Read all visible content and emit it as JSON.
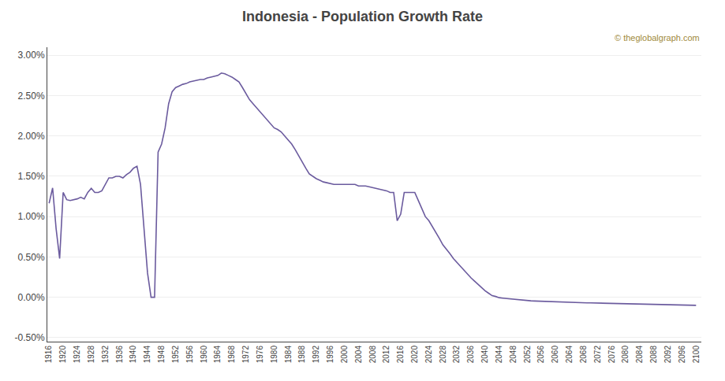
{
  "chart_data": {
    "type": "line",
    "title": "Indonesia - Population Growth Rate",
    "annotations": [
      "© theglobalgraph.com"
    ],
    "color": "#6b5b9e",
    "grid": "y",
    "x": [
      1916,
      1917,
      1918,
      1919,
      1920,
      1921,
      1922,
      1923,
      1924,
      1925,
      1926,
      1927,
      1928,
      1929,
      1930,
      1931,
      1932,
      1933,
      1934,
      1935,
      1936,
      1937,
      1938,
      1939,
      1940,
      1941,
      1942,
      1943,
      1944,
      1945,
      1946,
      1947,
      1948,
      1949,
      1950,
      1951,
      1952,
      1953,
      1954,
      1955,
      1956,
      1957,
      1958,
      1959,
      1960,
      1961,
      1962,
      1963,
      1964,
      1965,
      1966,
      1967,
      1968,
      1969,
      1970,
      1971,
      1972,
      1973,
      1974,
      1975,
      1976,
      1977,
      1978,
      1979,
      1980,
      1981,
      1982,
      1983,
      1984,
      1985,
      1986,
      1987,
      1988,
      1989,
      1990,
      1991,
      1992,
      1993,
      1994,
      1995,
      1996,
      1997,
      1998,
      1999,
      2000,
      2001,
      2002,
      2003,
      2004,
      2005,
      2006,
      2007,
      2008,
      2009,
      2010,
      2011,
      2012,
      2013,
      2014,
      2015,
      2016,
      2017,
      2018,
      2019,
      2020,
      2021,
      2022,
      2023,
      2024,
      2025,
      2026,
      2027,
      2028,
      2029,
      2030,
      2031,
      2032,
      2033,
      2034,
      2035,
      2036,
      2037,
      2038,
      2039,
      2040,
      2041,
      2042,
      2043,
      2044,
      2045,
      2046,
      2047,
      2048,
      2049,
      2050,
      2051,
      2052,
      2053,
      2054,
      2055,
      2056,
      2057,
      2058,
      2059,
      2060,
      2061,
      2062,
      2063,
      2064,
      2065,
      2066,
      2067,
      2068,
      2069,
      2070,
      2071,
      2072,
      2073,
      2074,
      2075,
      2076,
      2077,
      2078,
      2079,
      2080,
      2081,
      2082,
      2083,
      2084,
      2085,
      2086,
      2087,
      2088,
      2089,
      2090,
      2091,
      2092,
      2093,
      2094,
      2095,
      2096,
      2097,
      2098,
      2099,
      2100
    ],
    "values": [
      0.01165,
      0.01355,
      0.0085,
      0.0048,
      0.013,
      0.0121,
      0.012,
      0.0121,
      0.0122,
      0.0124,
      0.0122,
      0.013,
      0.0135,
      0.013,
      0.013,
      0.0132,
      0.014,
      0.0148,
      0.0148,
      0.015,
      0.015,
      0.0148,
      0.0152,
      0.0155,
      0.016,
      0.01625,
      0.014,
      0.008,
      0.003,
      0.0,
      0.0,
      0.018,
      0.019,
      0.021,
      0.024,
      0.0255,
      0.026,
      0.0262,
      0.0264,
      0.0265,
      0.0267,
      0.0268,
      0.0269,
      0.027,
      0.027,
      0.0272,
      0.0273,
      0.0274,
      0.0275,
      0.0278,
      0.0277,
      0.0275,
      0.0273,
      0.027,
      0.0267,
      0.026,
      0.0253,
      0.0245,
      0.024,
      0.0235,
      0.023,
      0.0225,
      0.022,
      0.0215,
      0.021,
      0.0208,
      0.0205,
      0.02,
      0.0195,
      0.019,
      0.0183,
      0.0175,
      0.0168,
      0.016,
      0.0153,
      0.015,
      0.0147,
      0.0145,
      0.0143,
      0.0142,
      0.0141,
      0.014,
      0.014,
      0.014,
      0.014,
      0.014,
      0.014,
      0.014,
      0.0138,
      0.0138,
      0.0138,
      0.0137,
      0.0136,
      0.0135,
      0.0134,
      0.0133,
      0.0132,
      0.013,
      0.013,
      0.0095,
      0.0103,
      0.013,
      0.013,
      0.013,
      0.013,
      0.012,
      0.011,
      0.01,
      0.0095,
      0.0088,
      0.008,
      0.0073,
      0.0065,
      0.006,
      0.0054,
      0.0048,
      0.0043,
      0.0038,
      0.0033,
      0.0028,
      0.0024,
      0.002,
      0.0016,
      0.0012,
      0.0008,
      0.0005,
      0.0002,
      0.0001,
      -5e-05,
      -0.0001,
      -0.00015,
      -0.0002,
      -0.00025,
      -0.0003,
      -0.00035,
      -0.0004,
      -0.00042,
      -0.00044,
      -0.00046,
      -0.00048,
      -0.0005,
      -0.00052,
      -0.00054,
      -0.00056,
      -0.00058,
      -0.0006,
      -0.00062,
      -0.00063,
      -0.00064,
      -0.00065,
      -0.00066,
      -0.00067,
      -0.00068,
      -0.00069,
      -0.0007,
      -0.00071,
      -0.00072,
      -0.00073,
      -0.00074,
      -0.00075,
      -0.00076,
      -0.00077,
      -0.00078,
      -0.00079,
      -0.0008,
      -0.00081,
      -0.00082,
      -0.00083,
      -0.00084,
      -0.00085,
      -0.00086,
      -0.00087,
      -0.00088,
      -0.00089,
      -0.0009,
      -0.00091,
      -0.00092,
      -0.00093,
      -0.00094,
      -0.00095,
      -0.00096,
      -0.00097,
      -0.00098,
      -0.00099,
      -0.001
    ],
    "xlim": [
      1915.5,
      2101.5
    ],
    "xticks": [
      1916,
      1920,
      1924,
      1928,
      1932,
      1936,
      1940,
      1944,
      1948,
      1952,
      1956,
      1960,
      1964,
      1968,
      1972,
      1976,
      1980,
      1984,
      1988,
      1992,
      1996,
      2000,
      2004,
      2008,
      2012,
      2016,
      2020,
      2024,
      2028,
      2032,
      2036,
      2040,
      2044,
      2048,
      2052,
      2056,
      2060,
      2064,
      2068,
      2072,
      2076,
      2080,
      2084,
      2088,
      2092,
      2096,
      2100
    ],
    "ylim": [
      -0.0055,
      0.031
    ],
    "yticks": [
      {
        "value": -0.005,
        "label": "-0.50%"
      },
      {
        "value": 0.0,
        "label": "0.00%"
      },
      {
        "value": 0.005,
        "label": "0.50%"
      },
      {
        "value": 0.01,
        "label": "1.00%"
      },
      {
        "value": 0.015,
        "label": "1.50%"
      },
      {
        "value": 0.02,
        "label": "2.00%"
      },
      {
        "value": 0.025,
        "label": "2.50%"
      },
      {
        "value": 0.03,
        "label": "3.00%"
      }
    ]
  }
}
